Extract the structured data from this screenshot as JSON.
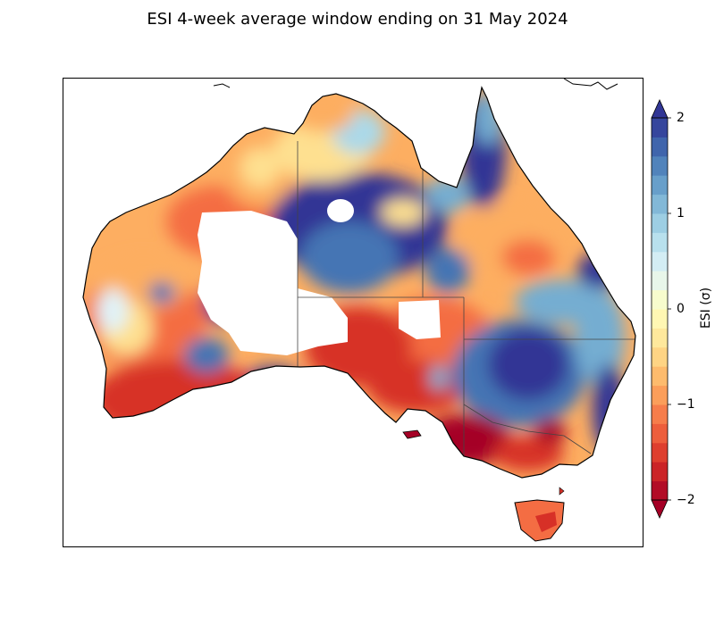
{
  "title": "ESI 4-week average window ending on 31 May 2024",
  "colorbar": {
    "label": "ESI (σ)",
    "ticks": [
      "2",
      "1",
      "0",
      "−1",
      "−2"
    ],
    "range": [
      -2,
      2
    ],
    "extend": "both",
    "colormap": "RdYlBu",
    "colors": {
      "dark_red": "#a50026",
      "red": "#d73027",
      "orange": "#f46d43",
      "light_orange": "#fdae61",
      "pale_yellow": "#fee090",
      "cream": "#ffffbf",
      "pale_blue": "#e0f3f8",
      "light_blue": "#abd9e9",
      "blue": "#74add1",
      "mid_blue": "#4575b4",
      "dark_blue": "#313695"
    }
  }
}
